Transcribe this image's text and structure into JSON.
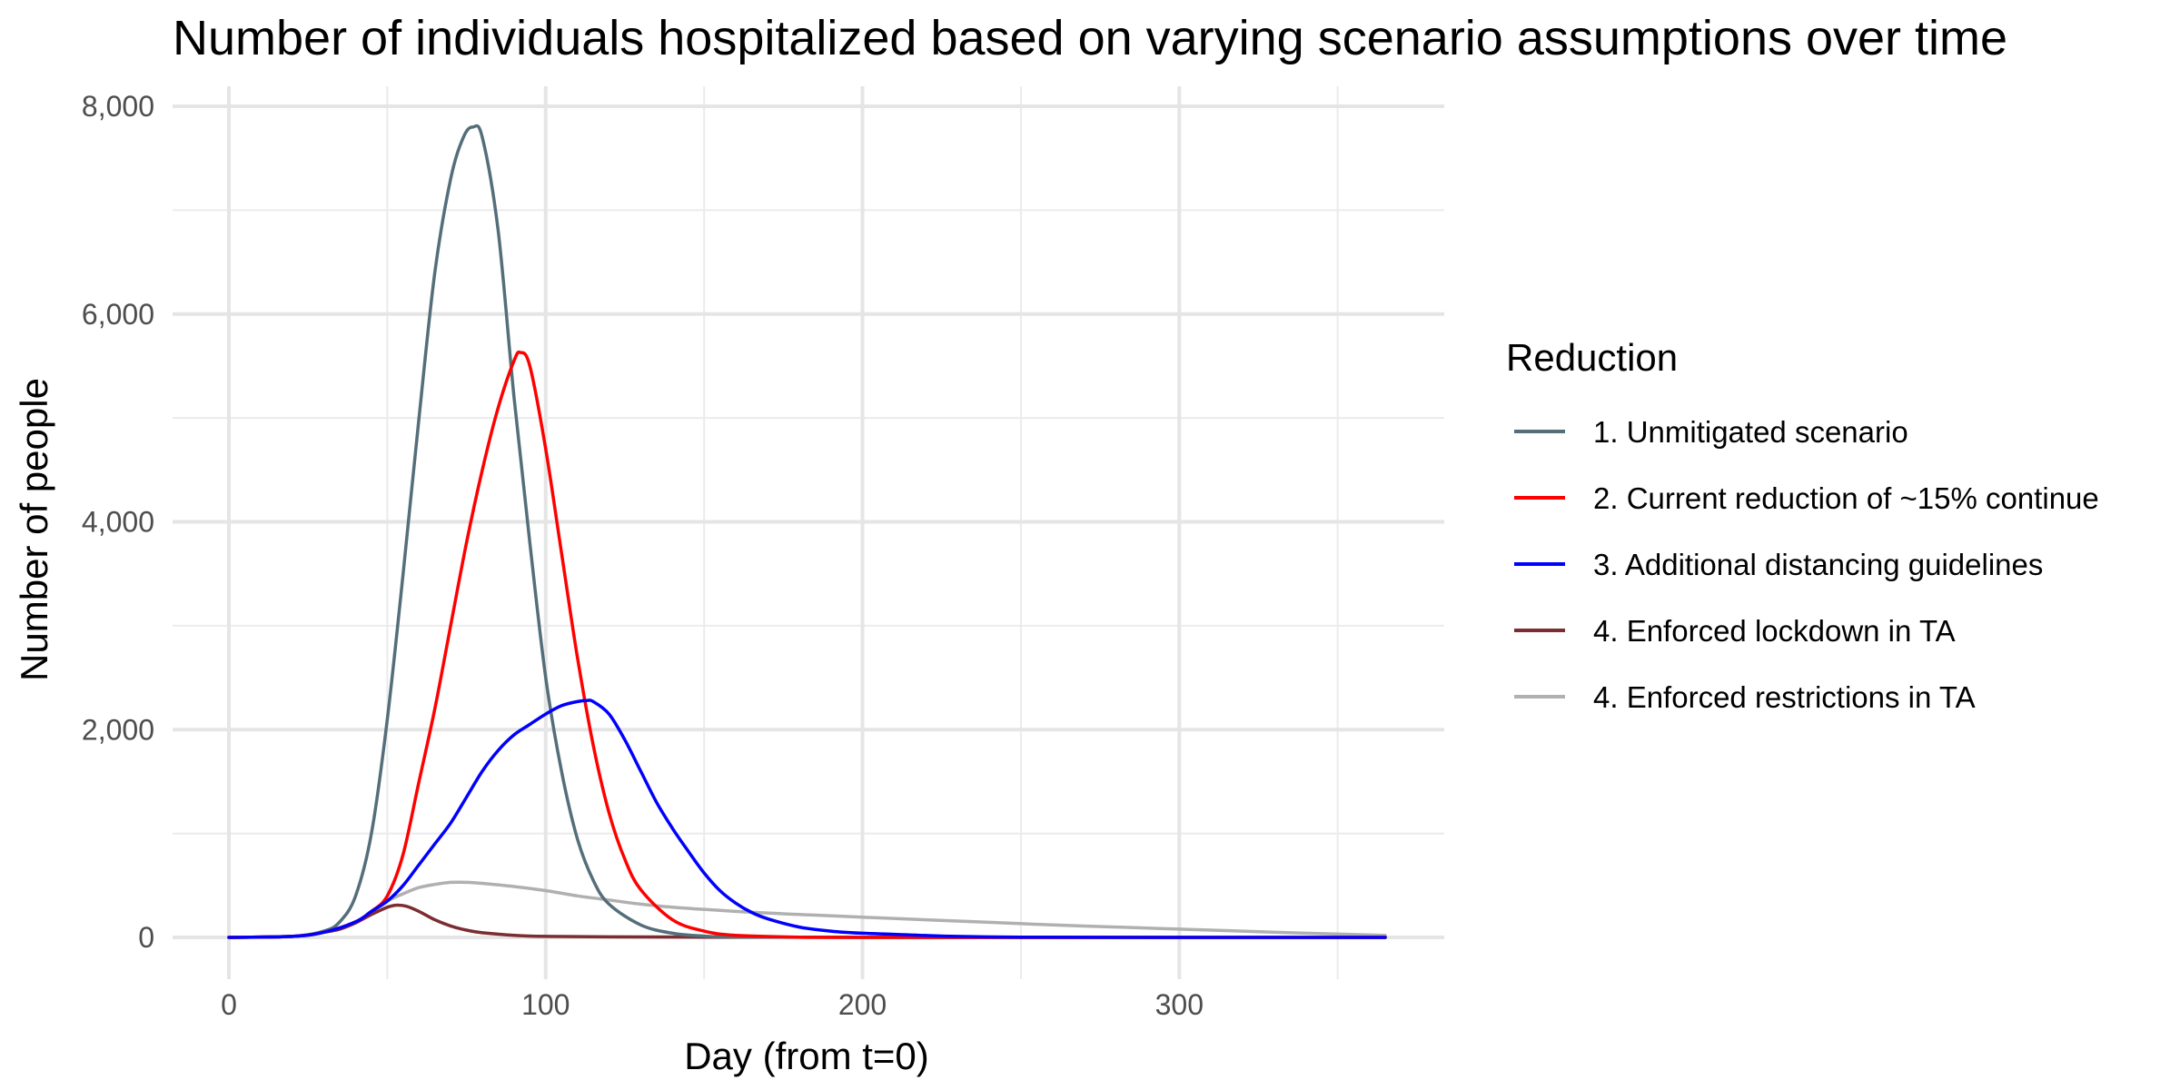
{
  "chart_data": {
    "type": "line",
    "title": "Number of individuals hospitalized based on varying scenario assumptions over time",
    "xlabel": "Day (from t=0)",
    "ylabel": "Number of people",
    "xlim": [
      0,
      365
    ],
    "ylim": [
      0,
      8000
    ],
    "x_ticks": [
      0,
      100,
      200,
      300
    ],
    "x_tick_labels": [
      "0",
      "100",
      "200",
      "300"
    ],
    "y_ticks": [
      0,
      2000,
      4000,
      6000,
      8000
    ],
    "y_tick_labels": [
      "0",
      "2,000",
      "4,000",
      "6,000",
      "8,000"
    ],
    "grid": true,
    "legend": {
      "title": "Reduction",
      "position": "right"
    },
    "series": [
      {
        "name": "1. Unmitigated scenario",
        "color": "#546e7a",
        "points": [
          [
            0,
            0
          ],
          [
            20,
            10
          ],
          [
            30,
            60
          ],
          [
            35,
            150
          ],
          [
            40,
            400
          ],
          [
            45,
            1000
          ],
          [
            50,
            2100
          ],
          [
            55,
            3500
          ],
          [
            60,
            5000
          ],
          [
            65,
            6400
          ],
          [
            70,
            7300
          ],
          [
            74,
            7700
          ],
          [
            77,
            7800
          ],
          [
            80,
            7700
          ],
          [
            85,
            6800
          ],
          [
            90,
            5200
          ],
          [
            95,
            3800
          ],
          [
            100,
            2500
          ],
          [
            105,
            1600
          ],
          [
            110,
            950
          ],
          [
            115,
            550
          ],
          [
            120,
            320
          ],
          [
            130,
            120
          ],
          [
            140,
            40
          ],
          [
            150,
            12
          ],
          [
            160,
            4
          ],
          [
            200,
            0
          ],
          [
            365,
            0
          ]
        ]
      },
      {
        "name": "2. Current reduction of ~15% continue",
        "color": "#ff0000",
        "points": [
          [
            0,
            0
          ],
          [
            20,
            10
          ],
          [
            30,
            50
          ],
          [
            40,
            150
          ],
          [
            45,
            250
          ],
          [
            50,
            400
          ],
          [
            55,
            800
          ],
          [
            60,
            1500
          ],
          [
            65,
            2200
          ],
          [
            70,
            3000
          ],
          [
            75,
            3800
          ],
          [
            80,
            4500
          ],
          [
            85,
            5100
          ],
          [
            90,
            5550
          ],
          [
            92,
            5630
          ],
          [
            95,
            5500
          ],
          [
            100,
            4700
          ],
          [
            105,
            3700
          ],
          [
            110,
            2700
          ],
          [
            115,
            1850
          ],
          [
            120,
            1200
          ],
          [
            125,
            750
          ],
          [
            130,
            460
          ],
          [
            140,
            170
          ],
          [
            150,
            60
          ],
          [
            160,
            20
          ],
          [
            180,
            3
          ],
          [
            200,
            0
          ],
          [
            365,
            0
          ]
        ]
      },
      {
        "name": "3. Additional distancing guidelines",
        "color": "#0000ff",
        "points": [
          [
            0,
            0
          ],
          [
            20,
            10
          ],
          [
            30,
            50
          ],
          [
            40,
            150
          ],
          [
            45,
            250
          ],
          [
            50,
            350
          ],
          [
            55,
            500
          ],
          [
            60,
            700
          ],
          [
            65,
            900
          ],
          [
            70,
            1100
          ],
          [
            75,
            1350
          ],
          [
            80,
            1600
          ],
          [
            85,
            1800
          ],
          [
            90,
            1950
          ],
          [
            95,
            2050
          ],
          [
            100,
            2150
          ],
          [
            105,
            2230
          ],
          [
            110,
            2270
          ],
          [
            113,
            2280
          ],
          [
            115,
            2270
          ],
          [
            120,
            2150
          ],
          [
            125,
            1900
          ],
          [
            130,
            1600
          ],
          [
            135,
            1300
          ],
          [
            140,
            1050
          ],
          [
            145,
            830
          ],
          [
            150,
            620
          ],
          [
            155,
            450
          ],
          [
            160,
            330
          ],
          [
            165,
            240
          ],
          [
            170,
            180
          ],
          [
            180,
            100
          ],
          [
            190,
            60
          ],
          [
            200,
            40
          ],
          [
            210,
            30
          ],
          [
            220,
            18
          ],
          [
            230,
            10
          ],
          [
            250,
            3
          ],
          [
            300,
            0
          ],
          [
            365,
            0
          ]
        ]
      },
      {
        "name": "4. Enforced lockdown in TA",
        "color": "#7b2d32",
        "points": [
          [
            0,
            0
          ],
          [
            20,
            10
          ],
          [
            30,
            50
          ],
          [
            35,
            80
          ],
          [
            40,
            140
          ],
          [
            45,
            220
          ],
          [
            50,
            290
          ],
          [
            53,
            310
          ],
          [
            56,
            300
          ],
          [
            60,
            250
          ],
          [
            65,
            170
          ],
          [
            70,
            110
          ],
          [
            75,
            70
          ],
          [
            80,
            45
          ],
          [
            90,
            20
          ],
          [
            100,
            10
          ],
          [
            120,
            5
          ],
          [
            150,
            3
          ],
          [
            200,
            1
          ],
          [
            250,
            0
          ],
          [
            365,
            0
          ]
        ]
      },
      {
        "name": "4. Enforced restrictions in TA",
        "color": "#b0b0b0",
        "points": [
          [
            0,
            0
          ],
          [
            20,
            10
          ],
          [
            30,
            50
          ],
          [
            40,
            150
          ],
          [
            45,
            250
          ],
          [
            50,
            350
          ],
          [
            55,
            420
          ],
          [
            60,
            480
          ],
          [
            65,
            510
          ],
          [
            70,
            530
          ],
          [
            75,
            530
          ],
          [
            80,
            520
          ],
          [
            90,
            490
          ],
          [
            100,
            450
          ],
          [
            110,
            400
          ],
          [
            120,
            360
          ],
          [
            130,
            320
          ],
          [
            140,
            290
          ],
          [
            150,
            270
          ],
          [
            160,
            250
          ],
          [
            170,
            235
          ],
          [
            180,
            220
          ],
          [
            200,
            195
          ],
          [
            220,
            170
          ],
          [
            240,
            145
          ],
          [
            260,
            120
          ],
          [
            280,
            100
          ],
          [
            300,
            80
          ],
          [
            320,
            60
          ],
          [
            340,
            40
          ],
          [
            365,
            20
          ]
        ]
      }
    ]
  }
}
